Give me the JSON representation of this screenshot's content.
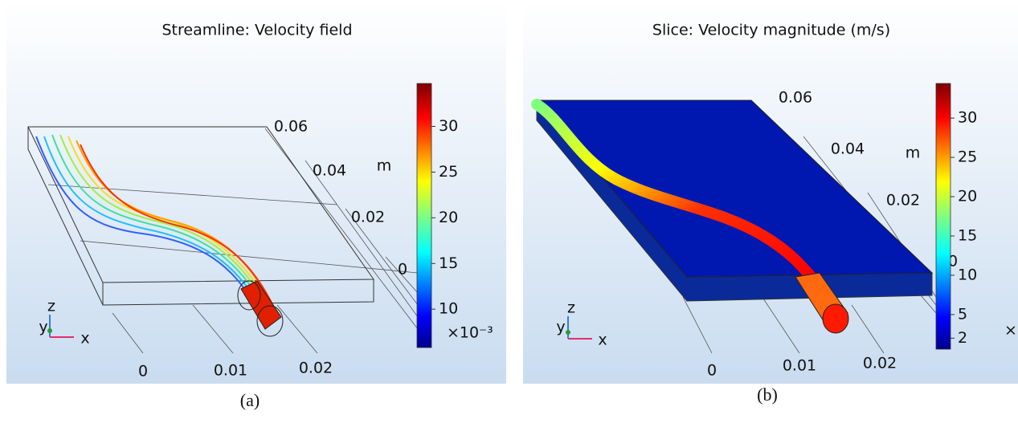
{
  "panels": [
    {
      "title": "Streamline: Velocity field",
      "caption": "(a)",
      "x_ticks": [
        0,
        0.01,
        0.02
      ],
      "y_ticks": [
        0.06,
        0.04,
        0.02,
        0
      ],
      "unit": "m",
      "triad": {
        "z": "z",
        "y": "y",
        "x": "x"
      },
      "colorbar": {
        "clim": [
          5.8,
          34.7
        ],
        "ticks": [
          10,
          15,
          20,
          25,
          30
        ],
        "multiplier": "×10⁻³"
      }
    },
    {
      "title": "Slice: Velocity magnitude (m/s)",
      "caption": "(b)",
      "x_ticks": [
        0,
        0.01,
        0.02
      ],
      "y_ticks": [
        0.06,
        0.04,
        0.02,
        0
      ],
      "unit": "m",
      "triad": {
        "z": "z",
        "y": "y",
        "x": "x"
      },
      "colorbar": {
        "clim": [
          0.6,
          34.4
        ],
        "ticks": [
          2,
          5,
          10,
          15,
          20,
          25,
          30
        ],
        "multiplier": "×"
      }
    }
  ]
}
